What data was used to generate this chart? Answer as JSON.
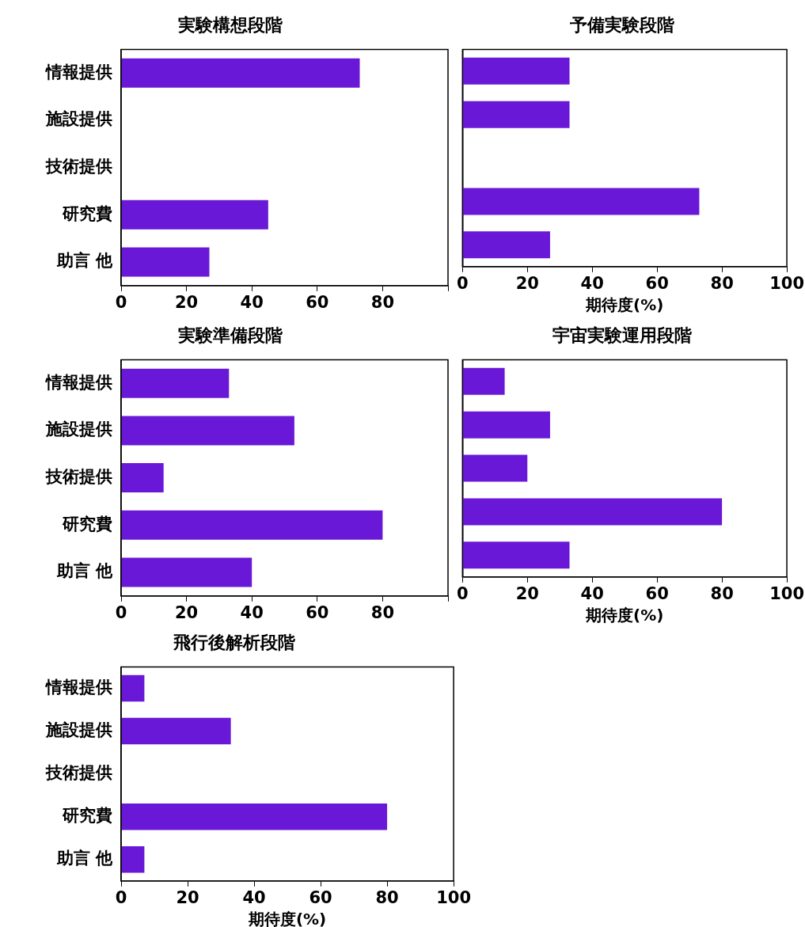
{
  "chart_data": [
    {
      "type": "bar",
      "orientation": "horizontal",
      "title": "実験構想段階",
      "categories": [
        "情報提供",
        "施設提供",
        "技術提供",
        "研究費",
        "助言 他"
      ],
      "values": [
        73,
        0,
        0,
        45,
        27
      ],
      "color": "#6a18d8",
      "xlim": [
        0,
        100
      ],
      "xticks": [
        0,
        20,
        40,
        60,
        80,
        {
          "value": 100,
          "label": null
        }
      ]
    },
    {
      "type": "bar",
      "orientation": "horizontal",
      "title": "予備実験段階",
      "categories": [
        null,
        null,
        null,
        null,
        null
      ],
      "values": [
        33,
        33,
        0,
        73,
        27
      ],
      "color": "#6a18d8",
      "xlim": [
        0,
        100
      ],
      "xticks": [
        0,
        20,
        40,
        60,
        80,
        100
      ],
      "xlabel": "期待度(%)"
    },
    {
      "type": "bar",
      "orientation": "horizontal",
      "title": "実験準備段階",
      "categories": [
        "情報提供",
        "施設提供",
        "技術提供",
        "研究費",
        "助言 他"
      ],
      "values": [
        33,
        53,
        13,
        80,
        40
      ],
      "color": "#6a18d8",
      "xlim": [
        0,
        100
      ],
      "xticks": [
        0,
        20,
        40,
        60,
        80,
        {
          "value": 100,
          "label": null
        }
      ]
    },
    {
      "type": "bar",
      "orientation": "horizontal",
      "title": "宇宙実験運用段階",
      "categories": [
        null,
        null,
        null,
        null,
        null
      ],
      "values": [
        13,
        27,
        20,
        80,
        33
      ],
      "color": "#6a18d8",
      "xlim": [
        0,
        100
      ],
      "xticks": [
        0,
        20,
        40,
        60,
        80,
        100
      ],
      "xlabel": "期待度(%)"
    },
    {
      "type": "bar",
      "orientation": "horizontal",
      "title": "飛行後解析段階",
      "categories": [
        "情報提供",
        "施設提供",
        "技術提供",
        "研究費",
        "助言 他"
      ],
      "values": [
        7,
        33,
        0,
        80,
        7
      ],
      "color": "#6a18d8",
      "xlim": [
        0,
        100
      ],
      "xticks": [
        0,
        20,
        40,
        60,
        80,
        100
      ],
      "xlabel": "期待度(%)"
    }
  ]
}
